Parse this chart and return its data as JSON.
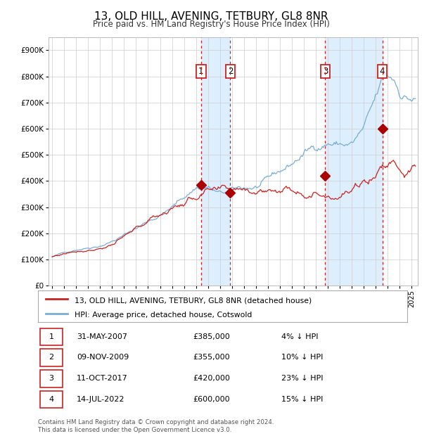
{
  "title": "13, OLD HILL, AVENING, TETBURY, GL8 8NR",
  "subtitle": "Price paid vs. HM Land Registry's House Price Index (HPI)",
  "footer1": "Contains HM Land Registry data © Crown copyright and database right 2024.",
  "footer2": "This data is licensed under the Open Government Licence v3.0.",
  "legend_line1": "13, OLD HILL, AVENING, TETBURY, GL8 8NR (detached house)",
  "legend_line2": "HPI: Average price, detached house, Cotswold",
  "sales": [
    {
      "num": 1,
      "date": "31-MAY-2007",
      "price": 385000,
      "pct": "4%",
      "x_year": 2007.42
    },
    {
      "num": 2,
      "date": "09-NOV-2009",
      "price": 355000,
      "pct": "10%",
      "x_year": 2009.86
    },
    {
      "num": 3,
      "date": "11-OCT-2017",
      "price": 420000,
      "pct": "23%",
      "x_year": 2017.78
    },
    {
      "num": 4,
      "date": "14-JUL-2022",
      "price": 600000,
      "pct": "15%",
      "x_year": 2022.54
    }
  ],
  "table_rows": [
    {
      "num": 1,
      "date": "31-MAY-2007",
      "price": "£385,000",
      "pct": "4% ↓ HPI"
    },
    {
      "num": 2,
      "date": "09-NOV-2009",
      "price": "£355,000",
      "pct": "10% ↓ HPI"
    },
    {
      "num": 3,
      "date": "11-OCT-2017",
      "price": "£420,000",
      "pct": "23% ↓ HPI"
    },
    {
      "num": 4,
      "date": "14-JUL-2022",
      "price": "£600,000",
      "pct": "15% ↓ HPI"
    }
  ],
  "hpi_color": "#7aadd4",
  "price_color": "#cc2222",
  "sale_marker_color": "#aa0000",
  "vline_color": "#cc2222",
  "bg_highlight_color": "#ddeeff",
  "grid_color": "#cccccc",
  "bg_color": "#f5f5f5",
  "ylim": [
    0,
    950000
  ],
  "yticks": [
    0,
    100000,
    200000,
    300000,
    400000,
    500000,
    600000,
    700000,
    800000,
    900000
  ],
  "ytick_labels": [
    "£0",
    "£100K",
    "£200K",
    "£300K",
    "£400K",
    "£500K",
    "£600K",
    "£700K",
    "£800K",
    "£900K"
  ],
  "xmin": 1994.7,
  "xmax": 2025.5
}
